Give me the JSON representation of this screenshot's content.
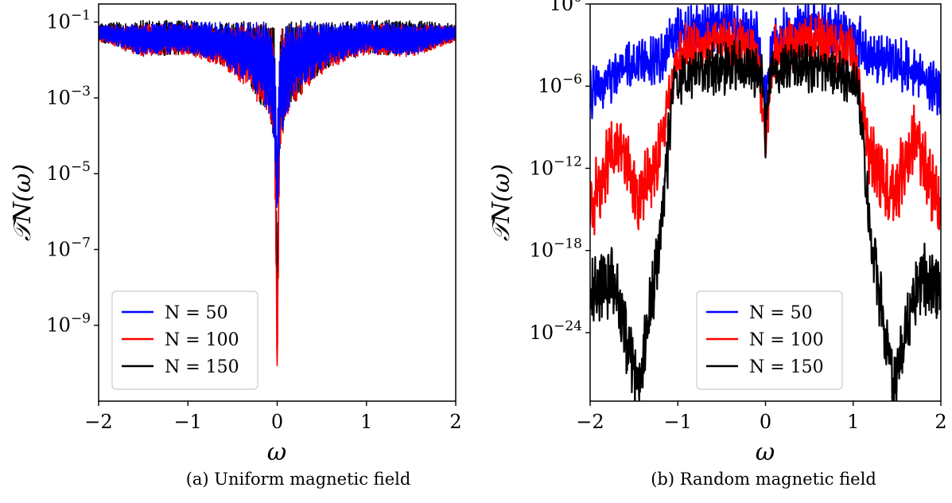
{
  "chart_data": [
    {
      "type": "line",
      "caption": "(a) Uniform magnetic field",
      "xlabel": "ω",
      "ylabel": "𝒯N(ω)",
      "xlim": [
        -2,
        2
      ],
      "ylim": [
        1e-11,
        0.3
      ],
      "yscale": "log",
      "xticks": [
        "−2",
        "−1",
        "0",
        "1",
        "2"
      ],
      "yticks": [
        {
          "base": "10",
          "exp": "−1",
          "value": -1
        },
        {
          "base": "10",
          "exp": "−3",
          "value": -3
        },
        {
          "base": "10",
          "exp": "−5",
          "value": -5
        },
        {
          "base": "10",
          "exp": "−7",
          "value": -7
        },
        {
          "base": "10",
          "exp": "−9",
          "value": -9
        }
      ],
      "legend_position": "lower-left",
      "series": [
        {
          "name": "N = 50",
          "color": "#0000ff",
          "envelope": {
            "x": [
              -2,
              -1.5,
              -1,
              -0.6,
              -0.3,
              -0.1,
              -0.03,
              0,
              0.03,
              0.1,
              0.3,
              0.6,
              1,
              1.5,
              2
            ],
            "upper": [
              -1.08,
              -1.05,
              -1.0,
              -1.0,
              -1.0,
              -1.0,
              -1.0,
              -4.0,
              -1.0,
              -1.0,
              -1.0,
              -1.0,
              -1.0,
              -1.05,
              -1.08
            ],
            "lower": [
              -1.45,
              -1.9,
              -1.8,
              -2.1,
              -2.7,
              -3.5,
              -4.3,
              -7.0,
              -4.3,
              -3.5,
              -2.7,
              -2.1,
              -1.8,
              -1.9,
              -1.45
            ]
          }
        },
        {
          "name": "N = 100",
          "color": "#ff0000",
          "envelope": {
            "x": [
              -2,
              -1.5,
              -1,
              -0.6,
              -0.3,
              -0.1,
              -0.03,
              0,
              0.03,
              0.1,
              0.3,
              0.6,
              1,
              1.5,
              2
            ],
            "upper": [
              -1.1,
              -1.07,
              -1.05,
              -1.2,
              -1.05,
              -1.1,
              -1.2,
              -10.0,
              -1.2,
              -1.1,
              -1.05,
              -1.2,
              -1.05,
              -1.07,
              -1.1
            ],
            "lower": [
              -1.5,
              -1.95,
              -1.85,
              -2.2,
              -2.8,
              -3.6,
              -4.5,
              -10.5,
              -4.5,
              -3.6,
              -2.8,
              -2.2,
              -1.85,
              -1.95,
              -1.5
            ]
          }
        },
        {
          "name": "N = 150",
          "color": "#000000",
          "envelope": {
            "x": [
              -2,
              -1.5,
              -1,
              -0.6,
              -0.3,
              -0.1,
              -0.03,
              0,
              0.03,
              0.1,
              0.3,
              0.6,
              1,
              1.5,
              2
            ],
            "upper": [
              -1.05,
              -0.95,
              -0.95,
              -1.0,
              -0.95,
              -1.0,
              -1.1,
              -7.5,
              -1.1,
              -1.0,
              -0.95,
              -1.0,
              -0.95,
              -0.95,
              -1.05
            ],
            "lower": [
              -1.5,
              -1.9,
              -1.85,
              -2.15,
              -2.75,
              -3.5,
              -4.4,
              -9.5,
              -4.4,
              -3.5,
              -2.75,
              -2.15,
              -1.85,
              -1.9,
              -1.5
            ]
          }
        }
      ]
    },
    {
      "type": "line",
      "caption": "(b) Random magnetic field",
      "xlabel": "ω",
      "ylabel": "𝒯N(ω)",
      "xlim": [
        -2,
        2
      ],
      "ylim": [
        1e-29,
        1
      ],
      "yscale": "log",
      "xticks": [
        "−2",
        "−1",
        "0",
        "1",
        "2"
      ],
      "yticks": [
        {
          "base": "10",
          "exp": "0",
          "value": 0
        },
        {
          "base": "10",
          "exp": "−6",
          "value": -6
        },
        {
          "base": "10",
          "exp": "−12",
          "value": -12
        },
        {
          "base": "10",
          "exp": "−18",
          "value": -18
        },
        {
          "base": "10",
          "exp": "−24",
          "value": -24
        }
      ],
      "legend_position": "lower-right",
      "series": [
        {
          "name": "N = 50",
          "color": "#0000ff",
          "profile": {
            "x": [
              -2,
              -1.6,
              -1.2,
              -1.0,
              -0.5,
              -0.1,
              0,
              0.1,
              0.5,
              1.0,
              1.2,
              1.6,
              2
            ],
            "y": [
              -6.5,
              -4.5,
              -4.0,
              -2.0,
              -1.5,
              -2.5,
              -6.5,
              -2.5,
              -1.5,
              -2.0,
              -4.0,
              -4.5,
              -6.5
            ]
          }
        },
        {
          "name": "N = 100",
          "color": "#ff0000",
          "profile": {
            "x": [
              -2,
              -1.7,
              -1.45,
              -1.2,
              -1.0,
              -0.5,
              -0.1,
              0,
              0.1,
              0.5,
              1.0,
              1.2,
              1.45,
              1.7,
              2
            ],
            "y": [
              -15,
              -10,
              -14,
              -11,
              -3.5,
              -2.5,
              -3.5,
              -9.5,
              -3.5,
              -2.5,
              -3.5,
              -11,
              -14,
              -10,
              -15
            ]
          }
        },
        {
          "name": "N = 150",
          "color": "#000000",
          "profile": {
            "x": [
              -2,
              -1.75,
              -1.45,
              -1.2,
              -1.05,
              -0.8,
              -0.3,
              -0.05,
              0,
              0.05,
              0.3,
              0.8,
              1.05,
              1.2,
              1.45,
              1.75,
              2
            ],
            "y": [
              -21,
              -20,
              -28,
              -17,
              -6,
              -5,
              -4.5,
              -5,
              -9.5,
              -5,
              -4.5,
              -5,
              -6,
              -17,
              -28,
              -20,
              -21
            ]
          }
        }
      ]
    }
  ]
}
